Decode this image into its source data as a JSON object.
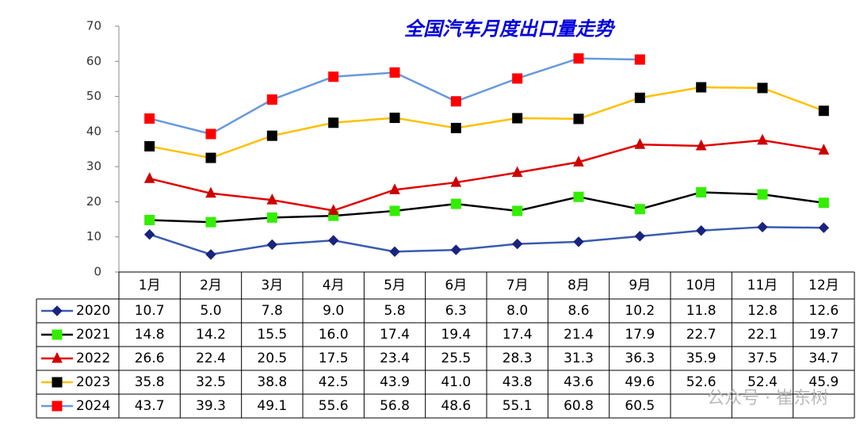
{
  "chart_data": {
    "type": "line",
    "title": "全国汽车月度出口量走势",
    "categories": [
      "1月",
      "2月",
      "3月",
      "4月",
      "5月",
      "6月",
      "7月",
      "8月",
      "9月",
      "10月",
      "11月",
      "12月"
    ],
    "ylim": [
      0,
      70
    ],
    "yticks": [
      0,
      10,
      20,
      30,
      40,
      50,
      60,
      70
    ],
    "series": [
      {
        "name": "2020",
        "color": "#3a5bb0",
        "marker": "diamond",
        "marker_color": "#1a237e",
        "values": [
          10.7,
          5,
          7.8,
          9,
          5.8,
          6.3,
          8,
          8.6,
          10.2,
          11.8,
          12.8,
          12.6
        ],
        "value_labels": [
          "10.7",
          "5.0",
          "7.8",
          "9.0",
          "5.8",
          "6.3",
          "8.0",
          "8.6",
          "10.2",
          "11.8",
          "12.8",
          "12.6"
        ]
      },
      {
        "name": "2021",
        "color": "#000000",
        "marker": "square",
        "marker_color": "#33ee00",
        "values": [
          14.8,
          14.2,
          15.5,
          16,
          17.4,
          19.4,
          17.4,
          21.4,
          17.9,
          22.7,
          22.1,
          19.7
        ],
        "value_labels": [
          "14.8",
          "14.2",
          "15.5",
          "16.0",
          "17.4",
          "19.4",
          "17.4",
          "21.4",
          "17.9",
          "22.7",
          "22.1",
          "19.7"
        ]
      },
      {
        "name": "2022",
        "color": "#e00000",
        "marker": "triangle",
        "marker_color": "#cc0000",
        "values": [
          26.6,
          22.4,
          20.5,
          17.5,
          23.4,
          25.5,
          28.3,
          31.3,
          36.3,
          35.9,
          37.5,
          34.7
        ],
        "value_labels": [
          "26.6",
          "22.4",
          "20.5",
          "17.5",
          "23.4",
          "25.5",
          "28.3",
          "31.3",
          "36.3",
          "35.9",
          "37.5",
          "34.7"
        ]
      },
      {
        "name": "2023",
        "color": "#ffc000",
        "marker": "square",
        "marker_color": "#000000",
        "values": [
          35.8,
          32.5,
          38.8,
          42.5,
          43.9,
          41,
          43.8,
          43.6,
          49.6,
          52.6,
          52.4,
          45.9
        ],
        "value_labels": [
          "35.8",
          "32.5",
          "38.8",
          "42.5",
          "43.9",
          "41.0",
          "43.8",
          "43.6",
          "49.6",
          "52.6",
          "52.4",
          "45.9"
        ]
      },
      {
        "name": "2024",
        "color": "#6699dd",
        "marker": "square",
        "marker_color": "#ff0000",
        "values": [
          43.7,
          39.3,
          49.1,
          55.6,
          56.8,
          48.6,
          55.1,
          60.8,
          60.5,
          null,
          null,
          null
        ],
        "value_labels": [
          "43.7",
          "39.3",
          "49.1",
          "55.6",
          "56.8",
          "48.6",
          "55.1",
          "60.8",
          "60.5",
          null,
          null,
          null
        ]
      }
    ],
    "watermark": "公众号 · 崔东树"
  }
}
